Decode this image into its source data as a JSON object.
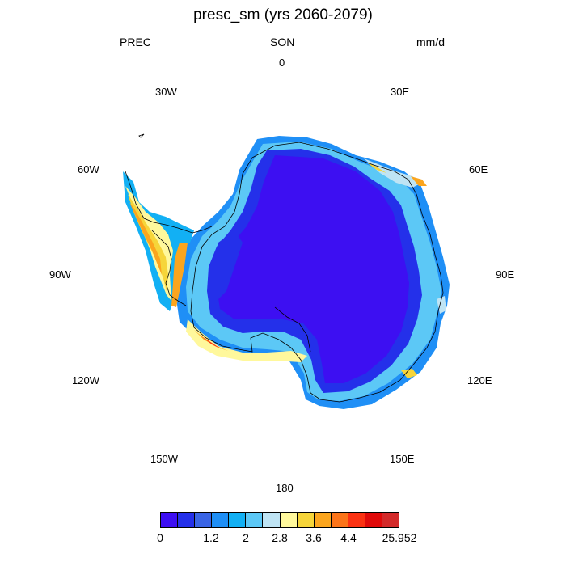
{
  "title": "presc_sm (yrs 2060-2079)",
  "left_label": "PREC",
  "center_label": "SON",
  "right_label": "mm/d",
  "longitude_labels": {
    "lon_0": "0",
    "lon_30e": "30E",
    "lon_60e": "60E",
    "lon_90e": "90E",
    "lon_120e": "120E",
    "lon_150e": "150E",
    "lon_180": "180",
    "lon_150w": "150W",
    "lon_120w": "120W",
    "lon_90w": "90W",
    "lon_60w": "60W",
    "lon_30w": "30W"
  },
  "colorbar": {
    "colors": [
      "#3d0ff2",
      "#2430ea",
      "#3a65e6",
      "#1f8ff6",
      "#12b0f4",
      "#5cc8f6",
      "#bfe4f4",
      "#fff89c",
      "#f6d53a",
      "#fba51e",
      "#fb7419",
      "#fb3212",
      "#e00a0a",
      "#d32a2a"
    ],
    "tick_labels": [
      "0",
      "1.2",
      "2",
      "2.8",
      "3.6",
      "4.4",
      "25.952"
    ]
  }
}
